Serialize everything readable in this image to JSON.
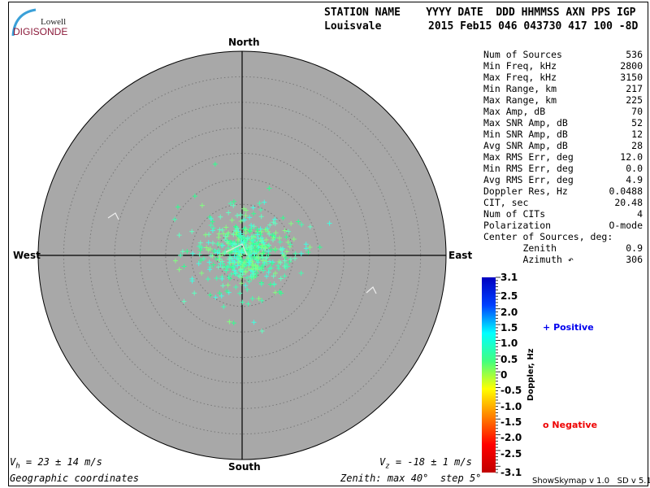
{
  "logo": {
    "top": "Lowell",
    "bottom": "DIGISONDE"
  },
  "header": {
    "labels": "STATION NAME    YYYY DATE  DDD HHMMSS AXN PPS IGP",
    "station": "Louisvale",
    "values": "2015 Feb15 046 043730 417 100 -8D"
  },
  "stats": [
    {
      "label": "Num of Sources",
      "value": "536"
    },
    {
      "label": "Min Freq, kHz",
      "value": "2800"
    },
    {
      "label": "Max Freq, kHz",
      "value": "3150"
    },
    {
      "label": "Min Range, km",
      "value": "217"
    },
    {
      "label": "Max Range, km",
      "value": "225"
    },
    {
      "label": "Max Amp, dB",
      "value": "70"
    },
    {
      "label": "Max SNR Amp, dB",
      "value": "52"
    },
    {
      "label": "Min SNR Amp, dB",
      "value": "12"
    },
    {
      "label": "Avg SNR Amp, dB",
      "value": "28"
    },
    {
      "label": "Max RMS Err, deg",
      "value": "12.0"
    },
    {
      "label": "Min RMS Err, deg",
      "value": "0.0"
    },
    {
      "label": "Avg RMS Err, deg",
      "value": "4.9"
    },
    {
      "label": "Doppler Res, Hz",
      "value": "0.0488"
    },
    {
      "label": "CIT, sec",
      "value": "20.48"
    },
    {
      "label": "Num of CITs",
      "value": "4"
    },
    {
      "label": "Polarization",
      "value": "O-mode"
    },
    {
      "label": "Center of Sources, deg:",
      "value": ""
    },
    {
      "label": "       Zenith",
      "value": "0.9"
    },
    {
      "label": "       Azimuth ↶",
      "value": "306"
    }
  ],
  "footer": {
    "vh": "= 23 ± 14 m/s",
    "vz": "= -18 ± 1 m/s",
    "coords": "Geographic coordinates",
    "zenith": "Zenith: max 40°  step 5°",
    "version": "ShowSkymap v 1.0   SD v 5.1"
  },
  "chart_data": {
    "type": "scatter",
    "projection": "polar-skymap",
    "compass": {
      "north": "North",
      "south": "South",
      "east": "East",
      "west": "West"
    },
    "zenith_max_deg": 40,
    "zenith_step_deg": 5,
    "num_sources": 536,
    "center_of_sources": {
      "zenith_deg": 0.9,
      "azimuth_deg": 306
    },
    "plot_background": "#a8a8a8",
    "point_color": "#40ffb0",
    "colorbar": {
      "label": "Doppler, Hz",
      "range": [
        -3.1,
        3.1
      ],
      "ticks": [
        "3.1",
        "2.5",
        "2.0",
        "1.5",
        "1.0",
        "0.5",
        "0",
        "-0.5",
        "-1.0",
        "-1.5",
        "-2.0",
        "-2.5",
        "-3.1"
      ],
      "colors": [
        "#0000c0",
        "#0040ff",
        "#00ffff",
        "#40ff80",
        "#ffff00",
        "#ff8000",
        "#ff0000",
        "#c00000"
      ]
    },
    "legend": [
      {
        "symbol": "+",
        "label": "Positive",
        "color": "#0000ee"
      },
      {
        "symbol": "o",
        "label": "Negative",
        "color": "#ee0000"
      }
    ]
  }
}
